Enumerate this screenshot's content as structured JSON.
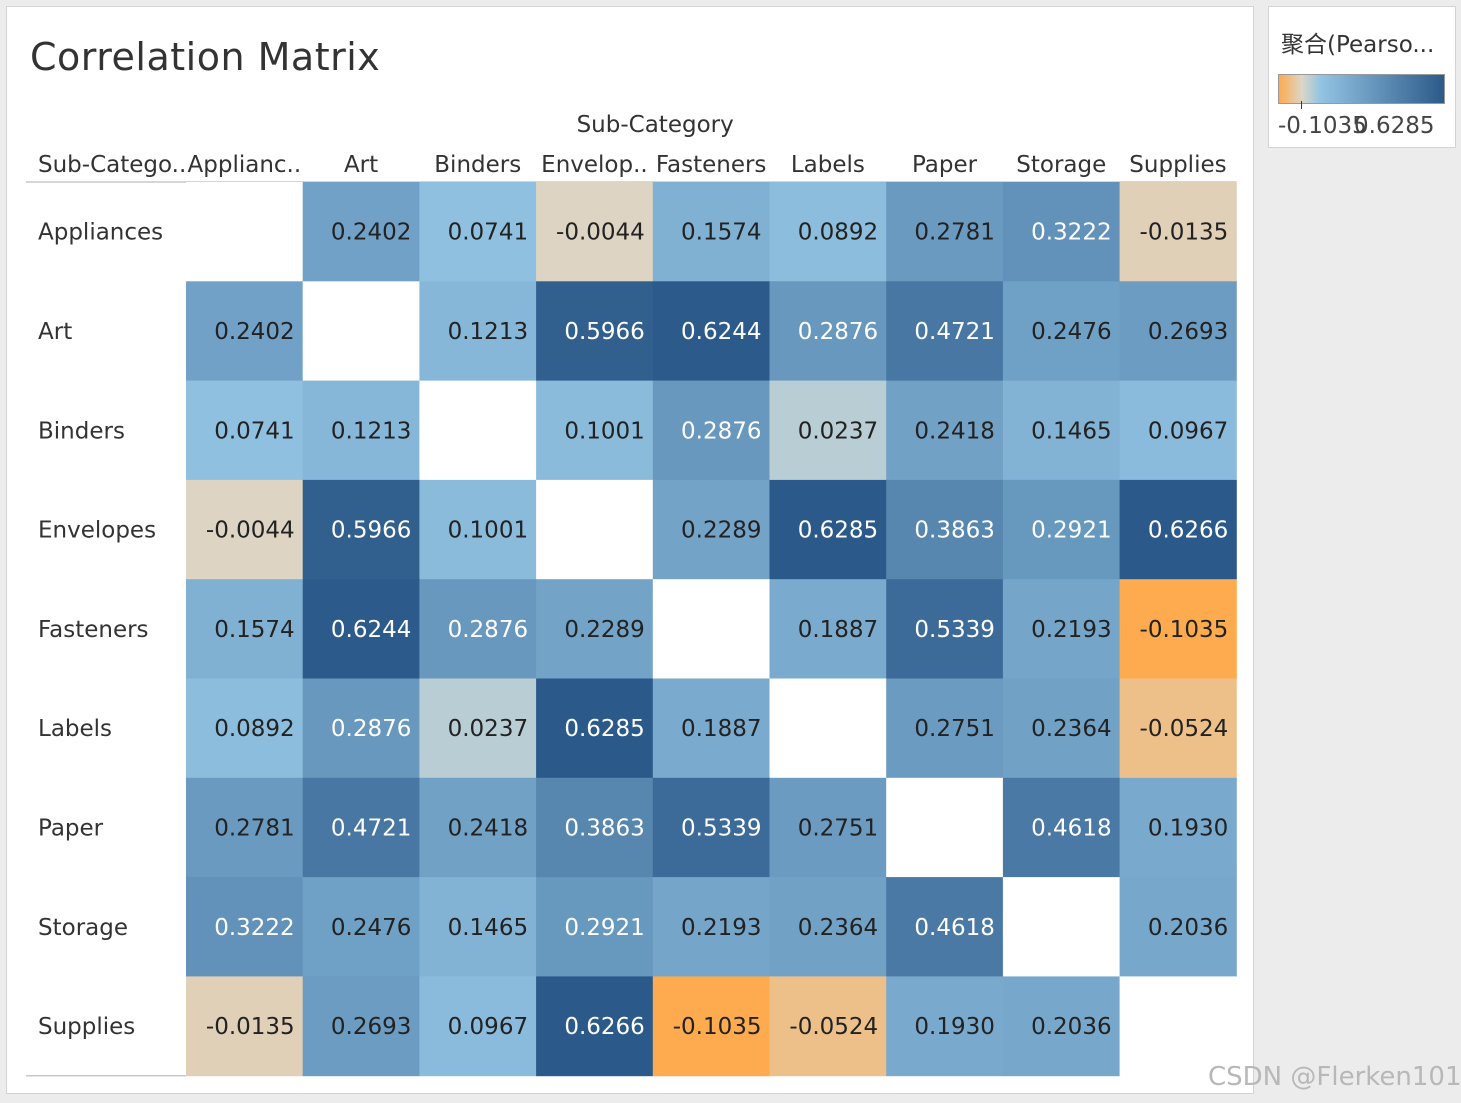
{
  "title": "Correlation Matrix",
  "legend": {
    "title": "聚合(Pearso...",
    "min_label": "-0.1035",
    "max_label": "0.6285"
  },
  "watermark": "CSDN @Flerken101",
  "colors": {
    "negative": "#fdab4e",
    "zero": "#dcd6c8",
    "low_positive": "#93c4e3",
    "high_positive": "#2b5a8a"
  },
  "chart_data": {
    "type": "heatmap",
    "title": "Correlation Matrix",
    "column_group_header": "Sub-Category",
    "row_header": "Sub-Catego..",
    "column_labels": [
      "Applianc..",
      "Art",
      "Binders",
      "Envelop..",
      "Fasteners",
      "Labels",
      "Paper",
      "Storage",
      "Supplies"
    ],
    "row_labels": [
      "Appliances",
      "Art",
      "Binders",
      "Envelopes",
      "Fasteners",
      "Labels",
      "Paper",
      "Storage",
      "Supplies"
    ],
    "color_range": [
      -0.1035,
      0.6285
    ],
    "values": [
      [
        null,
        0.2402,
        0.0741,
        -0.0044,
        0.1574,
        0.0892,
        0.2781,
        0.3222,
        -0.0135
      ],
      [
        0.2402,
        null,
        0.1213,
        0.5966,
        0.6244,
        0.2876,
        0.4721,
        0.2476,
        0.2693
      ],
      [
        0.0741,
        0.1213,
        null,
        0.1001,
        0.2876,
        0.0237,
        0.2418,
        0.1465,
        0.0967
      ],
      [
        -0.0044,
        0.5966,
        0.1001,
        null,
        0.2289,
        0.6285,
        0.3863,
        0.2921,
        0.6266
      ],
      [
        0.1574,
        0.6244,
        0.2876,
        0.2289,
        null,
        0.1887,
        0.5339,
        0.2193,
        -0.1035
      ],
      [
        0.0892,
        0.2876,
        0.0237,
        0.6285,
        0.1887,
        null,
        0.2751,
        0.2364,
        -0.0524
      ],
      [
        0.2781,
        0.4721,
        0.2418,
        0.3863,
        0.5339,
        0.2751,
        null,
        0.4618,
        0.193
      ],
      [
        0.3222,
        0.2476,
        0.1465,
        0.2921,
        0.2193,
        0.2364,
        0.4618,
        null,
        0.2036
      ],
      [
        -0.0135,
        0.2693,
        0.0967,
        0.6266,
        -0.1035,
        -0.0524,
        0.193,
        0.2036,
        null
      ]
    ]
  }
}
